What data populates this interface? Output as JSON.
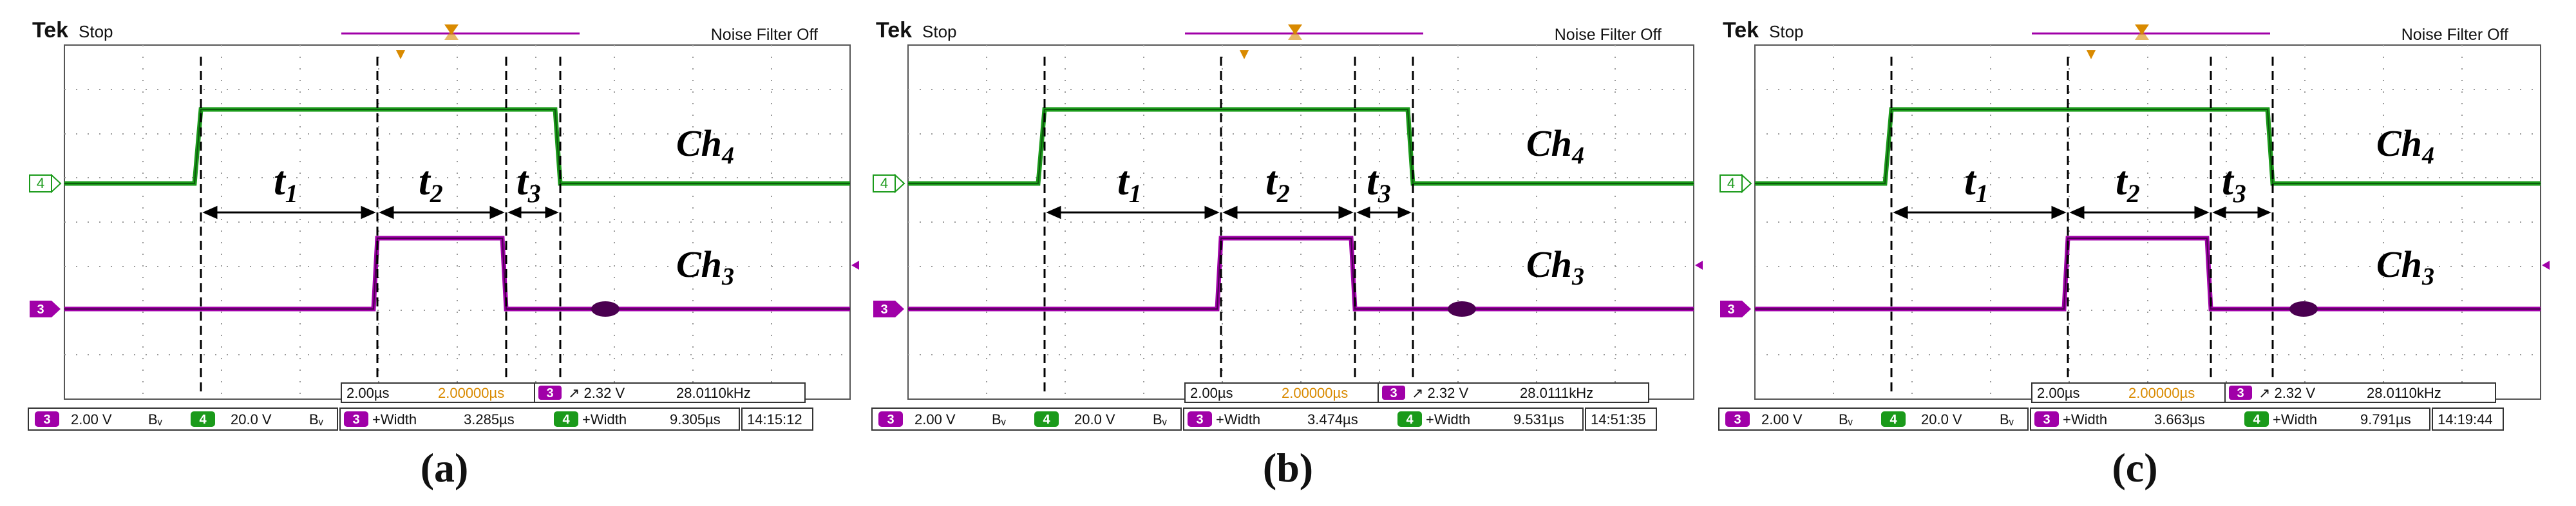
{
  "panels": [
    {
      "caption": "(a)",
      "tek": "Tek",
      "state": "Stop",
      "noise_filter": "Noise Filter Off",
      "t1": "t",
      "t1_sub": "1",
      "t2": "t",
      "t2_sub": "2",
      "t3": "t",
      "t3_sub": "3",
      "ch4": "Ch",
      "ch4_sub": "4",
      "ch3": "Ch",
      "ch3_sub": "3",
      "timebase": "2.00µs",
      "delay": "2.00000µs",
      "trig_ch": "3",
      "trig_level": "↗ 2.32 V",
      "freq": "28.0110kHz",
      "ch3_scale": "2.00 V",
      "bw1": "Bᵥ",
      "ch4_scale": "20.0 V",
      "bw2": "Bᵥ",
      "m1_label": "+Width",
      "m1_value": "3.285µs",
      "m2_label": "+Width",
      "m2_value": "9.305µs",
      "time": "14:15:12"
    },
    {
      "caption": "(b)",
      "tek": "Tek",
      "state": "Stop",
      "noise_filter": "Noise Filter Off",
      "t1": "t",
      "t1_sub": "1",
      "t2": "t",
      "t2_sub": "2",
      "t3": "t",
      "t3_sub": "3",
      "ch4": "Ch",
      "ch4_sub": "4",
      "ch3": "Ch",
      "ch3_sub": "3",
      "timebase": "2.00µs",
      "delay": "2.00000µs",
      "trig_ch": "3",
      "trig_level": "↗ 2.32 V",
      "freq": "28.0111kHz",
      "ch3_scale": "2.00 V",
      "bw1": "Bᵥ",
      "ch4_scale": "20.0 V",
      "bw2": "Bᵥ",
      "m1_label": "+Width",
      "m1_value": "3.474µs",
      "m2_label": "+Width",
      "m2_value": "9.531µs",
      "time": "14:51:35"
    },
    {
      "caption": "(c)",
      "tek": "Tek",
      "state": "Stop",
      "noise_filter": "Noise Filter Off",
      "t1": "t",
      "t1_sub": "1",
      "t2": "t",
      "t2_sub": "2",
      "t3": "t",
      "t3_sub": "3",
      "ch4": "Ch",
      "ch4_sub": "4",
      "ch3": "Ch",
      "ch3_sub": "3",
      "timebase": "2.00µs",
      "delay": "2.00000µs",
      "trig_ch": "3",
      "trig_level": "↗ 2.32 V",
      "freq": "28.0110kHz",
      "ch3_scale": "2.00 V",
      "bw1": "Bᵥ",
      "ch4_scale": "20.0 V",
      "bw2": "Bᵥ",
      "m1_label": "+Width",
      "m1_value": "3.663µs",
      "m2_label": "+Width",
      "m2_value": "9.791µs",
      "time": "14:19:44"
    }
  ],
  "colors": {
    "ch3": "#a000a8",
    "ch4": "#1a9a1a",
    "grid": "#888888",
    "trigger": "#d98a00"
  },
  "icons": [
    "trigger-position-icon",
    "trigger-level-arrow-icon",
    "ch4-ground-marker-icon",
    "ch3-ground-marker-icon"
  ]
}
